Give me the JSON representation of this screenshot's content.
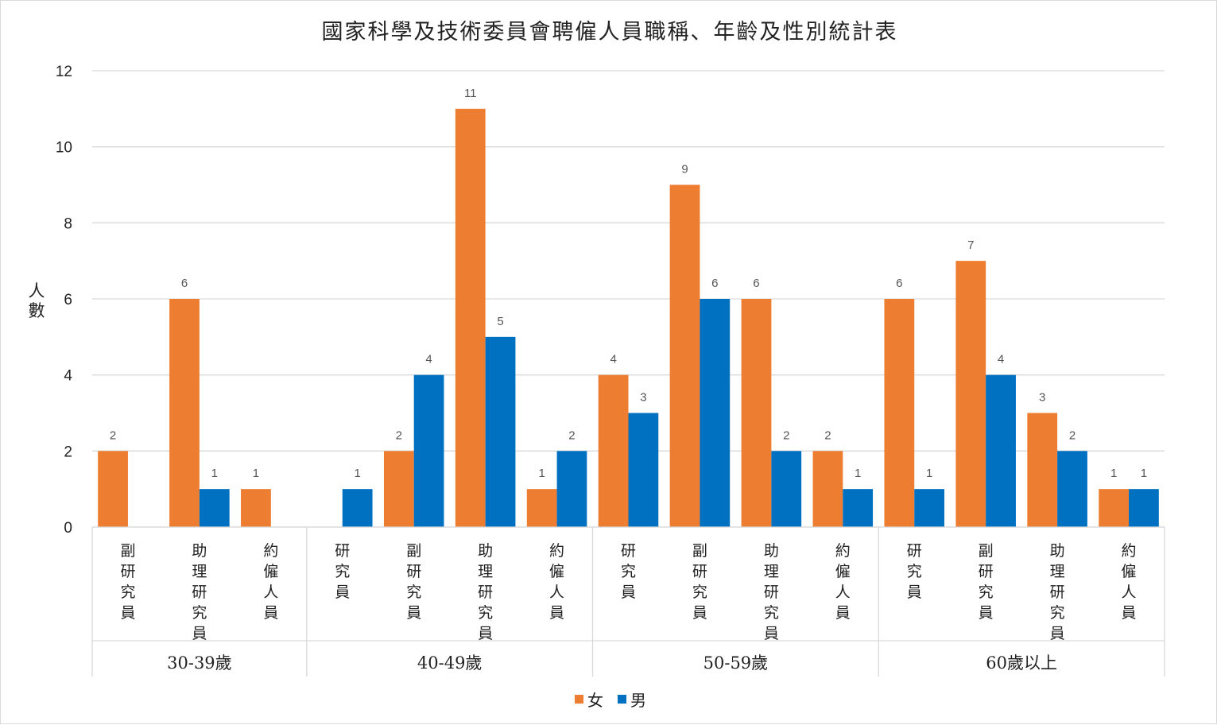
{
  "chart_data": {
    "type": "bar",
    "title": "國家科學及技術委員會聘僱人員職稱、年齡及性別統計表",
    "ylabel": "人數",
    "xlabel": "",
    "ylim": [
      0,
      12
    ],
    "yticks": [
      0,
      2,
      4,
      6,
      8,
      10,
      12
    ],
    "grid": true,
    "legend_position": "bottom",
    "groups": [
      {
        "label": "30-39歲",
        "categories": [
          "副研究員",
          "助理研究員",
          "約僱人員"
        ]
      },
      {
        "label": "40-49歲",
        "categories": [
          "研究員",
          "副研究員",
          "助理研究員",
          "約僱人員"
        ]
      },
      {
        "label": "50-59歲",
        "categories": [
          "研究員",
          "副研究員",
          "助理研究員",
          "約僱人員"
        ]
      },
      {
        "label": "60歲以上",
        "categories": [
          "研究員",
          "副研究員",
          "助理研究員",
          "約僱人員"
        ]
      }
    ],
    "series": [
      {
        "name": "女",
        "color": "#ED7D31",
        "values": [
          2,
          6,
          1,
          null,
          2,
          11,
          1,
          4,
          9,
          6,
          2,
          6,
          7,
          3,
          1
        ]
      },
      {
        "name": "男",
        "color": "#0070C0",
        "values": [
          null,
          1,
          null,
          1,
          4,
          5,
          2,
          3,
          6,
          2,
          1,
          1,
          4,
          2,
          1
        ]
      }
    ]
  }
}
